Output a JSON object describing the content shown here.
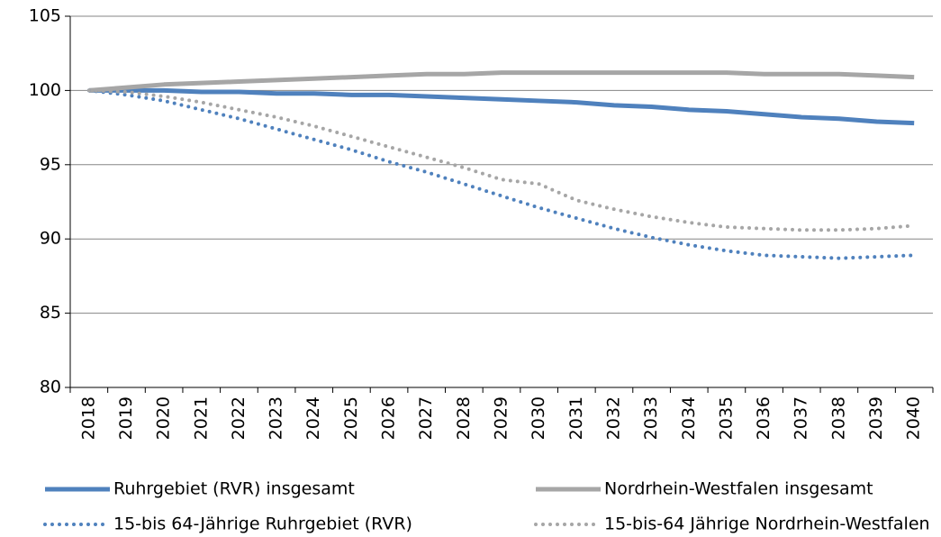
{
  "chart_data": {
    "type": "line",
    "categories": [
      "2018",
      "2019",
      "2020",
      "2021",
      "2022",
      "2023",
      "2024",
      "2025",
      "2026",
      "2027",
      "2028",
      "2029",
      "2030",
      "2031",
      "2032",
      "2033",
      "2034",
      "2035",
      "2036",
      "2037",
      "2038",
      "2039",
      "2040"
    ],
    "series": [
      {
        "name": "Ruhrgebiet (RVR) insgesamt",
        "color": "#4f81bd",
        "style": "solid",
        "values": [
          100,
          100,
          100,
          99.9,
          99.9,
          99.8,
          99.8,
          99.7,
          99.7,
          99.6,
          99.5,
          99.4,
          99.3,
          99.2,
          99.0,
          98.9,
          98.7,
          98.6,
          98.4,
          98.2,
          98.1,
          97.9,
          97.8
        ]
      },
      {
        "name": "Nordrhein-Westfalen insgesamt",
        "color": "#a6a6a6",
        "style": "solid",
        "values": [
          100,
          100.2,
          100.4,
          100.5,
          100.6,
          100.7,
          100.8,
          100.9,
          101.0,
          101.1,
          101.1,
          101.2,
          101.2,
          101.2,
          101.2,
          101.2,
          101.2,
          101.2,
          101.1,
          101.1,
          101.1,
          101.0,
          100.9
        ]
      },
      {
        "name": "15-bis 64-Jährige Ruhrgebiet (RVR)",
        "color": "#4f81bd",
        "style": "dotted",
        "values": [
          100,
          99.7,
          99.3,
          98.7,
          98.1,
          97.4,
          96.7,
          96.0,
          95.2,
          94.5,
          93.7,
          92.9,
          92.1,
          91.4,
          90.7,
          90.1,
          89.6,
          89.2,
          88.9,
          88.8,
          88.7,
          88.8,
          88.9
        ]
      },
      {
        "name": "15-bis-64 Jährige Nordrhein-Westfalen",
        "color": "#a6a6a6",
        "style": "dotted",
        "values": [
          100,
          99.9,
          99.6,
          99.2,
          98.7,
          98.2,
          97.6,
          96.9,
          96.2,
          95.5,
          94.8,
          94.0,
          93.7,
          92.6,
          92.0,
          91.5,
          91.1,
          90.8,
          90.7,
          90.6,
          90.6,
          90.7,
          90.9
        ]
      }
    ],
    "ylim": [
      80,
      105
    ],
    "yticks": [
      80,
      85,
      90,
      95,
      100,
      105
    ],
    "grid": true
  }
}
